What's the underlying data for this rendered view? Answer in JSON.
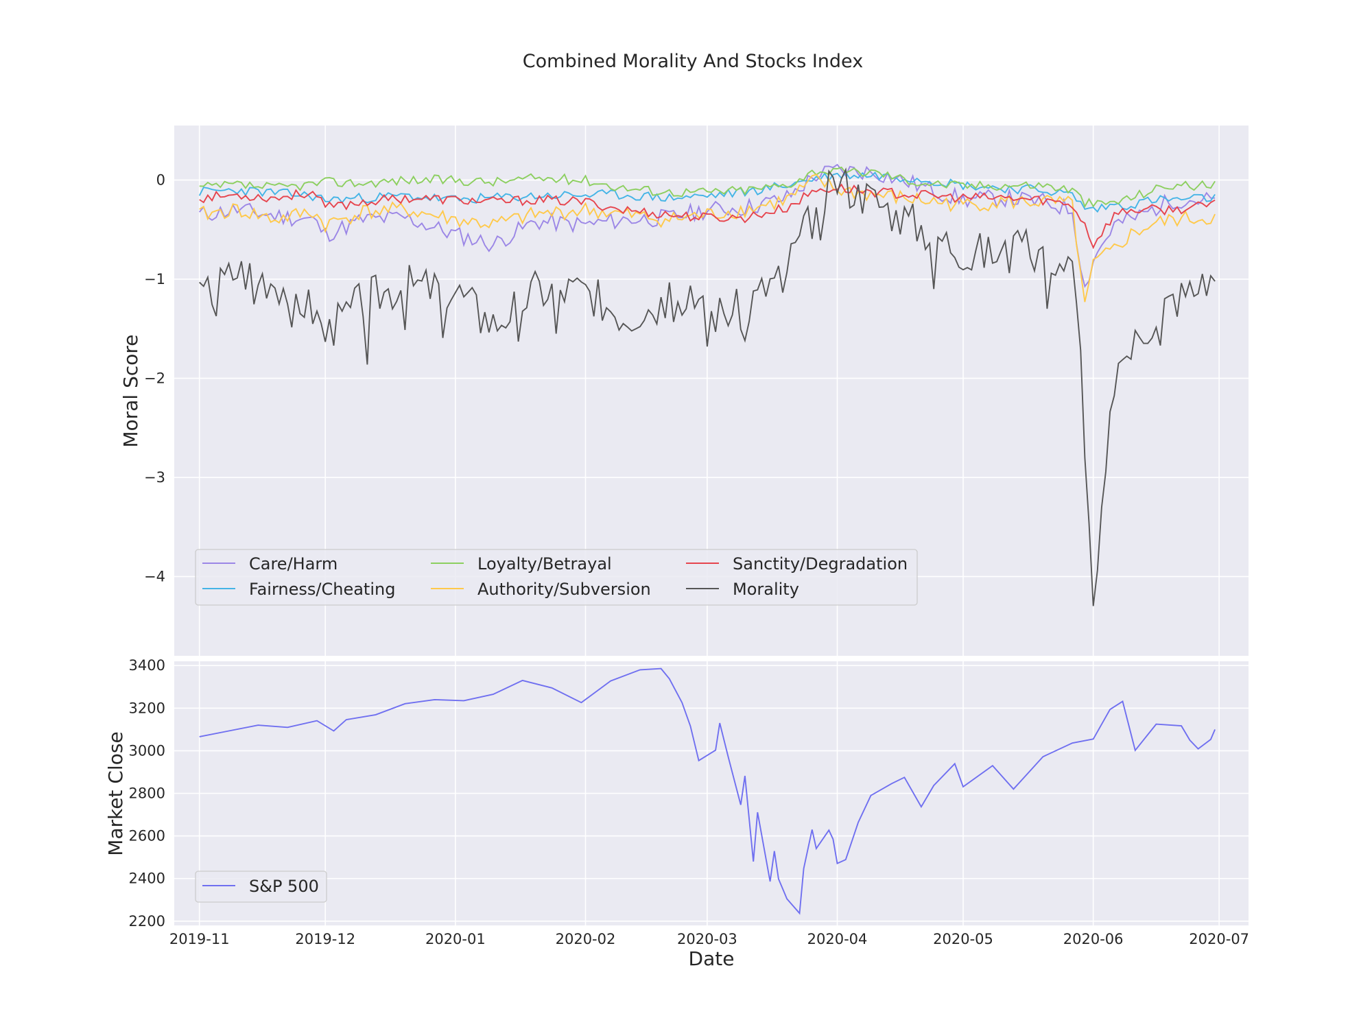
{
  "title": "Combined Morality And Stocks Index",
  "chart_data": [
    {
      "type": "line",
      "ylabel": "Moral Score",
      "ylim": [
        -4.8,
        0.55
      ],
      "yticks": [
        0,
        -1,
        -2,
        -3,
        -4
      ],
      "ytick_labels": [
        "0",
        "−1",
        "−2",
        "−3",
        "−4"
      ],
      "xlim": [
        "2019-10-26",
        "2020-07-08"
      ],
      "grid": true,
      "legend": {
        "location": "lower-left",
        "columns": 3
      },
      "key_dates": [
        "2019-11-01",
        "2019-11-10",
        "2019-11-19",
        "2019-11-28",
        "2019-12-01",
        "2019-12-10",
        "2019-12-20",
        "2020-01-01",
        "2020-01-10",
        "2020-01-20",
        "2020-02-01",
        "2020-02-10",
        "2020-02-21",
        "2020-03-01",
        "2020-03-10",
        "2020-03-20",
        "2020-03-27",
        "2020-04-01",
        "2020-04-10",
        "2020-04-20",
        "2020-05-01",
        "2020-05-10",
        "2020-05-20",
        "2020-05-27",
        "2020-05-30",
        "2020-06-01",
        "2020-06-06",
        "2020-06-10",
        "2020-06-15",
        "2020-06-20",
        "2020-06-30"
      ],
      "series": [
        {
          "name": "Care/Harm",
          "color": "#9b86e6",
          "base": [
            -0.35,
            -0.3,
            -0.36,
            -0.4,
            -0.55,
            -0.4,
            -0.38,
            -0.55,
            -0.65,
            -0.42,
            -0.45,
            -0.4,
            -0.38,
            -0.3,
            -0.28,
            -0.18,
            0.05,
            0.1,
            0.08,
            -0.05,
            -0.2,
            -0.18,
            -0.22,
            -0.3,
            -1.1,
            -0.8,
            -0.45,
            -0.4,
            -0.3,
            -0.2,
            -0.2
          ],
          "noise": 0.09,
          "seed": 11
        },
        {
          "name": "Fairness/Cheating",
          "color": "#44b4e6",
          "base": [
            -0.12,
            -0.1,
            -0.13,
            -0.16,
            -0.2,
            -0.18,
            -0.16,
            -0.2,
            -0.18,
            -0.16,
            -0.15,
            -0.15,
            -0.18,
            -0.16,
            -0.12,
            -0.05,
            0.02,
            0.05,
            0.05,
            0.02,
            -0.05,
            -0.08,
            -0.1,
            -0.15,
            -0.28,
            -0.3,
            -0.25,
            -0.25,
            -0.2,
            -0.2,
            -0.18
          ],
          "noise": 0.05,
          "seed": 23
        },
        {
          "name": "Loyalty/Betrayal",
          "color": "#8ccf5f",
          "base": [
            -0.08,
            -0.05,
            -0.08,
            -0.04,
            -0.02,
            -0.03,
            0.0,
            0.0,
            -0.02,
            0.02,
            0.0,
            -0.08,
            -0.12,
            -0.12,
            -0.1,
            -0.05,
            0.1,
            0.08,
            0.08,
            -0.02,
            -0.06,
            -0.05,
            -0.05,
            -0.1,
            -0.22,
            -0.25,
            -0.22,
            -0.18,
            -0.1,
            -0.05,
            -0.06
          ],
          "noise": 0.05,
          "seed": 37
        },
        {
          "name": "Authority/Subversion",
          "color": "#ffc94a",
          "base": [
            -0.35,
            -0.3,
            -0.4,
            -0.32,
            -0.45,
            -0.32,
            -0.3,
            -0.4,
            -0.45,
            -0.35,
            -0.3,
            -0.35,
            -0.4,
            -0.35,
            -0.3,
            -0.2,
            0.0,
            -0.1,
            -0.15,
            -0.2,
            -0.25,
            -0.22,
            -0.22,
            -0.25,
            -1.3,
            -0.85,
            -0.7,
            -0.55,
            -0.45,
            -0.4,
            -0.38
          ],
          "noise": 0.08,
          "seed": 41
        },
        {
          "name": "Sanctity/Degradation",
          "color": "#e6444d",
          "base": [
            -0.18,
            -0.15,
            -0.18,
            -0.12,
            -0.28,
            -0.22,
            -0.18,
            -0.2,
            -0.22,
            -0.2,
            -0.22,
            -0.3,
            -0.35,
            -0.38,
            -0.38,
            -0.28,
            -0.1,
            -0.08,
            -0.12,
            -0.15,
            -0.18,
            -0.18,
            -0.2,
            -0.25,
            -0.45,
            -0.65,
            -0.35,
            -0.3,
            -0.3,
            -0.3,
            -0.25
          ],
          "noise": 0.05,
          "seed": 53
        },
        {
          "name": "Morality",
          "color": "#555555",
          "base": [
            -1.2,
            -0.9,
            -1.0,
            -1.3,
            -1.55,
            -1.2,
            -1.05,
            -1.1,
            -1.45,
            -1.1,
            -1.1,
            -1.35,
            -1.2,
            -1.35,
            -1.3,
            -0.85,
            -0.3,
            0.0,
            -0.2,
            -0.45,
            -0.7,
            -0.75,
            -0.7,
            -0.9,
            -2.2,
            -4.45,
            -2.0,
            -1.7,
            -1.4,
            -1.2,
            -1.0
          ],
          "noise": 0.22,
          "seed": 67
        }
      ]
    },
    {
      "type": "line",
      "ylabel": "Market Close",
      "xlabel": "Date",
      "ylim": [
        2180,
        3420
      ],
      "yticks": [
        3400,
        3200,
        3000,
        2800,
        2600,
        2400,
        2200
      ],
      "ytick_labels": [
        "3400",
        "3200",
        "3000",
        "2800",
        "2600",
        "2400",
        "2200"
      ],
      "xlim": [
        "2019-10-26",
        "2020-07-08"
      ],
      "xticks": [
        "2019-11-01",
        "2019-12-01",
        "2020-01-01",
        "2020-02-01",
        "2020-03-01",
        "2020-04-01",
        "2020-05-01",
        "2020-06-01",
        "2020-07-01"
      ],
      "xtick_labels": [
        "2019-11",
        "2019-12",
        "2020-01",
        "2020-02",
        "2020-03",
        "2020-04",
        "2020-05",
        "2020-06",
        "2020-07"
      ],
      "grid": true,
      "legend": {
        "location": "lower-left",
        "columns": 1
      },
      "series": [
        {
          "name": "S&P 500",
          "color": "#6f6ff0",
          "points": [
            [
              "2019-11-01",
              3066
            ],
            [
              "2019-11-08",
              3093
            ],
            [
              "2019-11-15",
              3120
            ],
            [
              "2019-11-22",
              3110
            ],
            [
              "2019-11-29",
              3141
            ],
            [
              "2019-12-03",
              3093
            ],
            [
              "2019-12-06",
              3146
            ],
            [
              "2019-12-13",
              3169
            ],
            [
              "2019-12-20",
              3221
            ],
            [
              "2019-12-27",
              3240
            ],
            [
              "2020-01-03",
              3235
            ],
            [
              "2020-01-10",
              3265
            ],
            [
              "2020-01-17",
              3330
            ],
            [
              "2020-01-24",
              3295
            ],
            [
              "2020-01-31",
              3226
            ],
            [
              "2020-02-07",
              3328
            ],
            [
              "2020-02-14",
              3380
            ],
            [
              "2020-02-19",
              3386
            ],
            [
              "2020-02-21",
              3338
            ],
            [
              "2020-02-24",
              3226
            ],
            [
              "2020-02-26",
              3116
            ],
            [
              "2020-02-28",
              2954
            ],
            [
              "2020-03-03",
              3003
            ],
            [
              "2020-03-04",
              3130
            ],
            [
              "2020-03-06",
              2972
            ],
            [
              "2020-03-09",
              2746
            ],
            [
              "2020-03-10",
              2882
            ],
            [
              "2020-03-12",
              2480
            ],
            [
              "2020-03-13",
              2711
            ],
            [
              "2020-03-16",
              2386
            ],
            [
              "2020-03-17",
              2529
            ],
            [
              "2020-03-18",
              2398
            ],
            [
              "2020-03-20",
              2305
            ],
            [
              "2020-03-23",
              2237
            ],
            [
              "2020-03-24",
              2447
            ],
            [
              "2020-03-26",
              2630
            ],
            [
              "2020-03-27",
              2541
            ],
            [
              "2020-03-30",
              2627
            ],
            [
              "2020-03-31",
              2585
            ],
            [
              "2020-04-01",
              2471
            ],
            [
              "2020-04-03",
              2489
            ],
            [
              "2020-04-06",
              2664
            ],
            [
              "2020-04-09",
              2790
            ],
            [
              "2020-04-14",
              2846
            ],
            [
              "2020-04-17",
              2875
            ],
            [
              "2020-04-21",
              2737
            ],
            [
              "2020-04-24",
              2837
            ],
            [
              "2020-04-29",
              2939
            ],
            [
              "2020-05-01",
              2831
            ],
            [
              "2020-05-08",
              2930
            ],
            [
              "2020-05-13",
              2820
            ],
            [
              "2020-05-20",
              2972
            ],
            [
              "2020-05-27",
              3036
            ],
            [
              "2020-06-01",
              3055
            ],
            [
              "2020-06-05",
              3194
            ],
            [
              "2020-06-08",
              3232
            ],
            [
              "2020-06-11",
              3002
            ],
            [
              "2020-06-16",
              3125
            ],
            [
              "2020-06-22",
              3117
            ],
            [
              "2020-06-24",
              3050
            ],
            [
              "2020-06-26",
              3009
            ],
            [
              "2020-06-29",
              3053
            ],
            [
              "2020-06-30",
              3100
            ]
          ]
        }
      ]
    }
  ]
}
